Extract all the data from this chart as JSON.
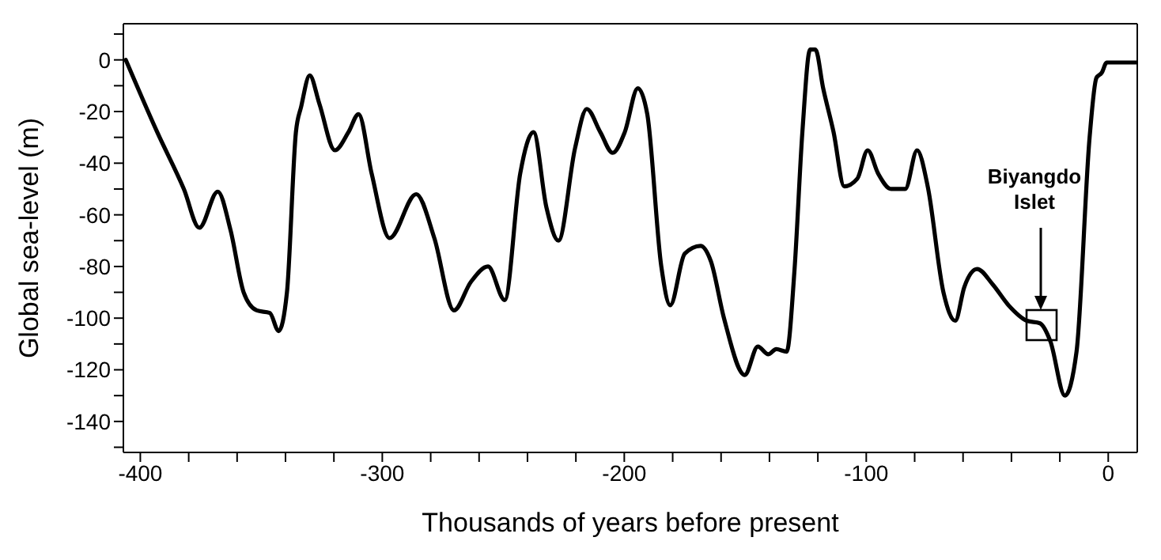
{
  "chart_data": {
    "type": "line",
    "xlabel": "Thousands of years before present",
    "ylabel": "Global sea-level (m)",
    "xlim": [
      -407,
      12
    ],
    "ylim": [
      -152,
      14
    ],
    "xticks": [
      -400,
      {
        "value": -380,
        "label": null
      },
      {
        "value": -360,
        "label": null
      },
      {
        "value": -340,
        "label": null
      },
      {
        "value": -320,
        "label": null
      },
      -300,
      {
        "value": -280,
        "label": null
      },
      {
        "value": -260,
        "label": null
      },
      {
        "value": -240,
        "label": null
      },
      {
        "value": -220,
        "label": null
      },
      -200,
      {
        "value": -180,
        "label": null
      },
      {
        "value": -160,
        "label": null
      },
      {
        "value": -140,
        "label": null
      },
      {
        "value": -120,
        "label": null
      },
      -100,
      {
        "value": -80,
        "label": null
      },
      {
        "value": -60,
        "label": null
      },
      {
        "value": -40,
        "label": null
      },
      {
        "value": -20,
        "label": null
      },
      0
    ],
    "yticks": [
      {
        "value": 10,
        "label": null
      },
      0,
      {
        "value": -10,
        "label": null
      },
      -20,
      {
        "value": -30,
        "label": null
      },
      -40,
      {
        "value": -50,
        "label": null
      },
      -60,
      {
        "value": -70,
        "label": null
      },
      -80,
      {
        "value": -90,
        "label": null
      },
      -100,
      {
        "value": -110,
        "label": null
      },
      -120,
      {
        "value": -130,
        "label": null
      },
      -140,
      {
        "value": -150,
        "label": null
      }
    ],
    "marker": "none",
    "line_style": "solid",
    "series": [
      {
        "color": "#000000",
        "x": [
          -406,
          -393,
          -382,
          -375.6,
          -368,
          -362.7,
          -357.3,
          -351.9,
          -346.5,
          -342.8,
          -339.4,
          -335.7,
          -333.5,
          -330,
          -326,
          -319.6,
          -314,
          -309.8,
          -304.4,
          -297,
          -286,
          -278.5,
          -270.4,
          -263.4,
          -256.3,
          -249.4,
          -243,
          -237.5,
          -232.2,
          -227.2,
          -220.3,
          -215.5,
          -209.9,
          -204.8,
          -199.8,
          -194.4,
          -190.5,
          -184.7,
          -181,
          -175,
          -168.5,
          -164.2,
          -158.8,
          -150.2,
          -144.8,
          -140.5,
          -137.2,
          -132.9,
          -129.7,
          -126.4,
          -123.2,
          -121,
          -117.8,
          -113.5,
          -109.1,
          -103.7,
          -99.4,
          -95.1,
          -89.7,
          -83.9,
          -79,
          -74.6,
          -68.1,
          -63.2,
          -59.5,
          -54.2,
          -47.7,
          -41.2,
          -33.6,
          -28.2,
          -23.9,
          -17.9,
          -13.1,
          -7.7,
          -4.9,
          -2.7,
          -0.6,
          11.7
        ],
        "values": [
          0,
          -28,
          -50,
          -65,
          -51,
          -66,
          -90,
          -97,
          -98,
          -105,
          -90,
          -28,
          -18,
          -6,
          -17,
          -35,
          -28,
          -21,
          -44,
          -69,
          -52,
          -69,
          -97,
          -86,
          -80,
          -93,
          -44,
          -28,
          -57,
          -70,
          -34,
          -19,
          -28,
          -36,
          -28,
          -11,
          -21,
          -80,
          -95,
          -75,
          -72,
          -78,
          -100,
          -122,
          -111,
          -114,
          -112,
          -113,
          -82,
          -28,
          4,
          4,
          -11,
          -28,
          -49,
          -46,
          -35,
          -44,
          -50,
          -50,
          -35,
          -49,
          -90,
          -101,
          -88,
          -81,
          -87,
          -95,
          -101,
          -102,
          -109,
          -130,
          -113,
          -30,
          -7,
          -5,
          -1,
          -1
        ]
      }
    ],
    "annotations": [
      "Biyangdo Islet"
    ]
  }
}
